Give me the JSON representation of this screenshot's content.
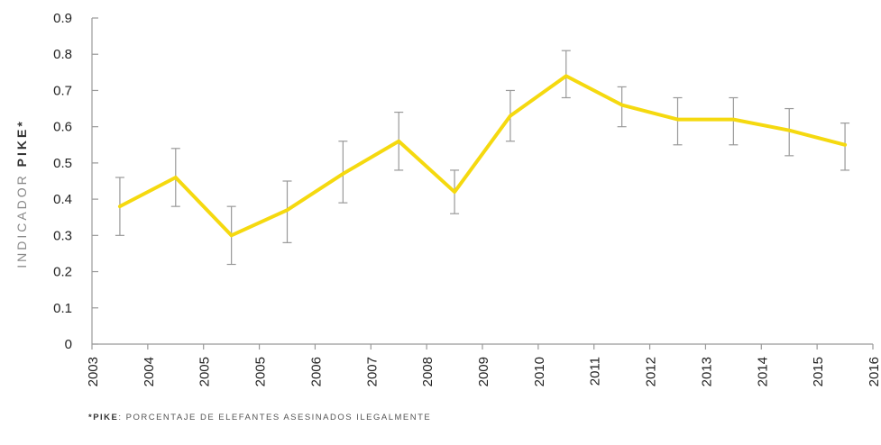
{
  "chart_data": {
    "type": "line",
    "ylabel": {
      "prefix": "INDICADOR ",
      "bold": "PIKE*"
    },
    "xlabel": "",
    "ylim": [
      0,
      0.9
    ],
    "xlim": [
      2003,
      2016
    ],
    "x_tick_labels": [
      "2003",
      "2004",
      "2005",
      "2005",
      "2006",
      "2007",
      "2008",
      "2009",
      "2010",
      "2011",
      "2012",
      "2013",
      "2014",
      "2015",
      "2016"
    ],
    "y_tick_labels": [
      "0",
      "0.1",
      "0.2",
      "0.3",
      "0.4",
      "0.5",
      "0.6",
      "0.7",
      "0.8",
      "0.9"
    ],
    "y_ticks": [
      0,
      0.1,
      0.2,
      0.3,
      0.4,
      0.5,
      0.6,
      0.7,
      0.8,
      0.9
    ],
    "series": [
      {
        "color": "#f5d90f",
        "x_tick_index": [
          0.5,
          1.5,
          2.5,
          3.5,
          4.5,
          5.5,
          6.5,
          7.5,
          8.5,
          9.5,
          10.5,
          11.5,
          12.5,
          13.5
        ],
        "values": [
          0.38,
          0.46,
          0.3,
          0.37,
          0.47,
          0.56,
          0.42,
          0.63,
          0.74,
          0.66,
          0.62,
          0.62,
          0.59,
          0.55
        ],
        "error_low": [
          0.3,
          0.38,
          0.22,
          0.28,
          0.39,
          0.48,
          0.36,
          0.56,
          0.68,
          0.6,
          0.55,
          0.55,
          0.52,
          0.48
        ],
        "error_high": [
          0.46,
          0.54,
          0.38,
          0.45,
          0.56,
          0.64,
          0.48,
          0.7,
          0.81,
          0.71,
          0.68,
          0.68,
          0.65,
          0.61
        ]
      }
    ],
    "grid": false,
    "errorbar_color": "#999999",
    "axis_color": "#999999"
  },
  "footnote": {
    "bold": "*PIKE",
    "text": ": PORCENTAJE DE ELEFANTES ASESINADOS ILEGALMENTE"
  }
}
